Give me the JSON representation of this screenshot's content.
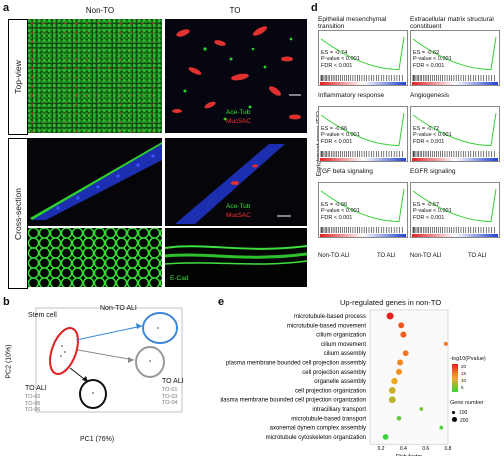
{
  "panel_a": {
    "label": "a",
    "col_headers": [
      "Non-TO",
      "TO"
    ],
    "row_labels": [
      "Top-view",
      "Cross-section"
    ],
    "stains_top": [
      "Ace-Tub",
      "Muc5AC"
    ],
    "stains_mid": [
      "Ace-Tub",
      "Muc5AC"
    ],
    "stain_bottom": "E-Cad"
  },
  "panel_b": {
    "label": "b",
    "stem_label": "Stem cell",
    "nonto_label": "Non-TO ALI",
    "to_label_left": "TO ALI",
    "to_left_ids": [
      "TO-02",
      "TO-05",
      "TO-06"
    ],
    "to_label_right": "TO ALI",
    "to_right_ids": [
      "TO-01",
      "TO-03",
      "TO-04"
    ],
    "xlabel": "PC1 (76%)",
    "ylabel": "PC2 (10%)"
  },
  "panel_d": {
    "label": "d",
    "ylabel": "Enrichment score (ES)",
    "x_left": [
      "Non-TO ALI",
      "TO ALI"
    ],
    "x_right": [
      "Non-TO ALI",
      "TO ALI"
    ],
    "cells": [
      {
        "title": "Epithelial mesenchymal transition",
        "es": "ES = -0.74",
        "p": "P-value < 0.001",
        "fdr": "FDR < 0.001"
      },
      {
        "title": "Extracellular matrix structural constituent",
        "es": "ES = -0.62",
        "p": "P-value < 0.001",
        "fdr": "FDR < 0.001"
      },
      {
        "title": "Inflammatory response",
        "es": "ES = -0.66",
        "p": "P-value < 0.001",
        "fdr": "FDR < 0.001"
      },
      {
        "title": "Angiogenesis",
        "es": "ES = -0.72",
        "p": "P-value < 0.001",
        "fdr": "FDR < 0.001"
      },
      {
        "title": "TGF beta signaling",
        "es": "ES = -0.66",
        "p": "P-value < 0.001",
        "fdr": "FDR < 0.001"
      },
      {
        "title": "EGFR signaling",
        "es": "ES = -0.67",
        "p": "P-value < 0.001",
        "fdr": "FDR < 0.001"
      }
    ]
  },
  "panel_e": {
    "label": "e",
    "legend_color_title": "-log10(Pvalue)",
    "legend_color_ticks": [
      "20",
      "15",
      "10",
      "5"
    ],
    "legend_size_title": "Gene number",
    "legend_size_ticks": [
      "100",
      "200"
    ]
  },
  "chart_data": {
    "type": "scatter",
    "title": "Up-regulated genes in non-TO",
    "xlabel": "Rich factor",
    "ylabel": "",
    "xlim": [
      0.1,
      0.8
    ],
    "xticks": [
      "0.2",
      "0.4",
      "0.6",
      "0.8"
    ],
    "categories": [
      "microtubule-based process",
      "microtubule-based movement",
      "cilium organization",
      "cilium movement",
      "cilium assembly",
      "plasma membrane bounded cell projection assembly",
      "cell projection assembly",
      "organelle assembly",
      "cell projection organization",
      "plasma membrane bounded cell projection organization",
      "intracilliary transport",
      "microtubule-based transport",
      "axonemal dynein complex assembly",
      "microtubule cytoskeleton organization"
    ],
    "rich_factor": [
      0.28,
      0.38,
      0.4,
      0.78,
      0.42,
      0.37,
      0.36,
      0.32,
      0.3,
      0.3,
      0.56,
      0.36,
      0.74,
      0.24
    ],
    "neg_log10_p": [
      24,
      20,
      19,
      17,
      17,
      16,
      15,
      13,
      11,
      10,
      6,
      5,
      4,
      3
    ],
    "gene_number": [
      230,
      140,
      150,
      40,
      130,
      150,
      150,
      170,
      200,
      200,
      30,
      60,
      25,
      120
    ],
    "colors": {
      "high": "#e8231f",
      "mid": "#f5a623",
      "low": "#3ad33a"
    }
  }
}
